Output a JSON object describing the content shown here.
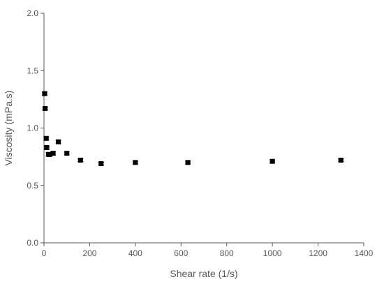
{
  "chart_data": {
    "type": "scatter",
    "title": "",
    "xlabel": "Shear rate (1/s)",
    "ylabel": "Viscosity (mPa.s)",
    "xlim": [
      0,
      1400
    ],
    "ylim": [
      0,
      2.0
    ],
    "x_ticks": [
      "0",
      "200",
      "400",
      "600",
      "800",
      "1000",
      "1200",
      "1400"
    ],
    "y_ticks": [
      "0.0",
      "0.5",
      "1.0",
      "1.5",
      "2.0"
    ],
    "grid": false,
    "legend": "none",
    "marker_color": "#000000",
    "axis_color": "#595959",
    "series": [
      {
        "x": [
          3,
          5,
          10,
          12,
          20,
          25,
          40,
          63,
          100,
          160,
          250,
          400,
          630,
          1000,
          1300
        ],
        "y": [
          1.3,
          1.17,
          0.91,
          0.83,
          0.77,
          0.77,
          0.78,
          0.88,
          0.78,
          0.72,
          0.69,
          0.7,
          0.7,
          0.71,
          0.72
        ],
        "error": [
          0.012,
          0.012,
          0.012,
          0.012,
          0.012,
          0.012,
          0.012,
          0.012,
          0.012,
          0.012,
          0.012,
          0.012,
          0.012,
          0.012,
          0.012
        ]
      }
    ]
  }
}
